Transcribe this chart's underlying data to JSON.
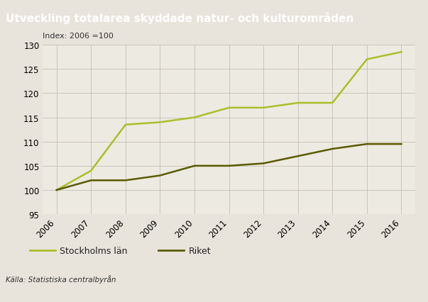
{
  "title": "Utveckling totalarea skyddade natur- och kulturområden",
  "subtitle": "Index: 2006 =100",
  "source": "Källa: Statistiska centralbyrån",
  "years": [
    2006,
    2007,
    2008,
    2009,
    2010,
    2011,
    2012,
    2013,
    2014,
    2015,
    2016
  ],
  "stockholms_lan": [
    100,
    104,
    113.5,
    114,
    115,
    117,
    117,
    118,
    118,
    127,
    128.5
  ],
  "riket": [
    100,
    102,
    102,
    103,
    105,
    105,
    105.5,
    107,
    108.5,
    109.5,
    109.5
  ],
  "color_stockholm": "#aabf28",
  "color_riket": "#5a5a00",
  "ylim": [
    95,
    130
  ],
  "yticks": [
    95,
    100,
    105,
    110,
    115,
    120,
    125,
    130
  ],
  "background_color": "#e8e4dc",
  "plot_background": "#edeae2",
  "title_background": "#a89e94",
  "legend_stockholm": "Stockholms län",
  "legend_riket": "Riket",
  "title_fontsize": 11,
  "axis_fontsize": 8.5,
  "subtitle_fontsize": 8,
  "source_fontsize": 7.5
}
